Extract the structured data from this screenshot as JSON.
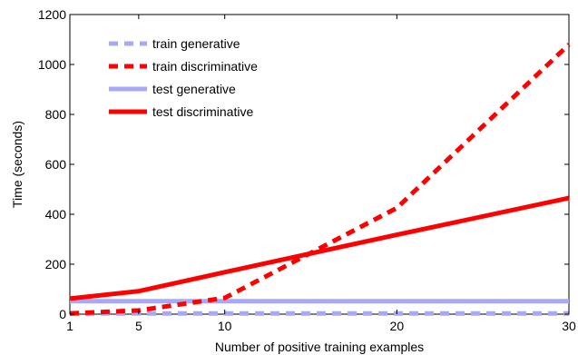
{
  "chart_data": {
    "type": "line",
    "title": "",
    "xlabel": "Number of positive training examples",
    "ylabel": "Time (seconds)",
    "xlim": [
      1,
      30
    ],
    "ylim": [
      0,
      1200
    ],
    "xticks": [
      1,
      5,
      10,
      20,
      30
    ],
    "yticks": [
      0,
      200,
      400,
      600,
      800,
      1000,
      1200
    ],
    "grid": false,
    "legend_position": "top-left",
    "series": [
      {
        "name": "train generative",
        "color": "#a8a8f8",
        "style": "dashed",
        "x": [
          1,
          5,
          10,
          20,
          30
        ],
        "y": [
          2,
          3,
          3,
          3,
          3
        ]
      },
      {
        "name": "train discriminative",
        "color": "#ff0000",
        "style": "dashed",
        "x": [
          1,
          5,
          10,
          20,
          30
        ],
        "y": [
          3,
          15,
          65,
          425,
          1080
        ]
      },
      {
        "name": "test generative",
        "color": "#a8a8f8",
        "style": "solid",
        "x": [
          1,
          5,
          10,
          20,
          30
        ],
        "y": [
          52,
          52,
          52,
          52,
          52
        ]
      },
      {
        "name": "test discriminative",
        "color": "#ff0000",
        "style": "solid",
        "x": [
          1,
          5,
          10,
          20,
          30
        ],
        "y": [
          62,
          92,
          168,
          318,
          465
        ]
      }
    ]
  }
}
